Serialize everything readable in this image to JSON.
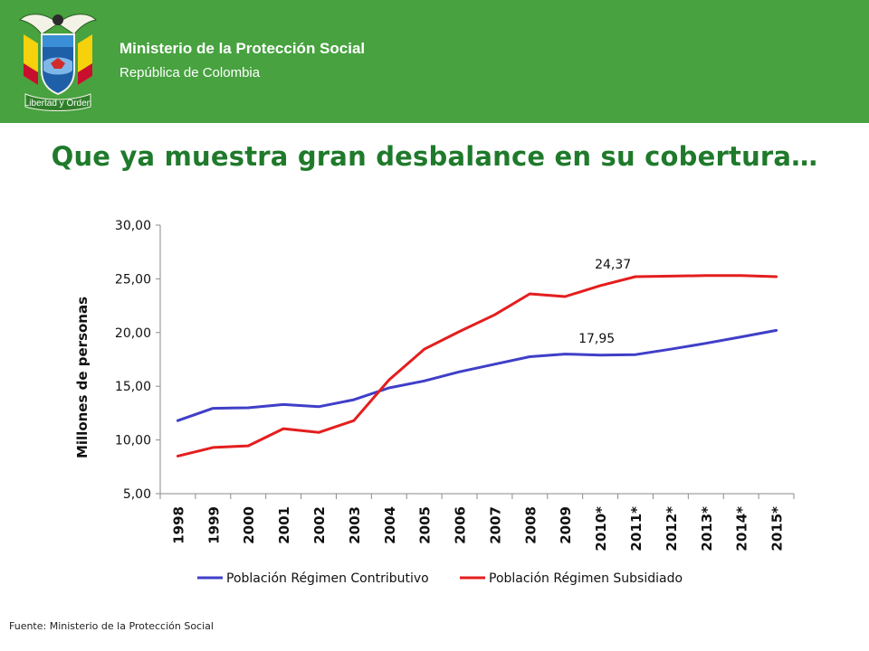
{
  "header": {
    "ministry": "Ministerio de la Protección Social",
    "republic": "República de Colombia",
    "seal_text": "Libertad y Orden",
    "bg_color": "#47a23f"
  },
  "slide_title": "Que ya muestra gran desbalance en su cobertura…",
  "chart_data": {
    "type": "line",
    "ylabel": "Millones de personas",
    "ylim": [
      5,
      30
    ],
    "y_ticks": [
      "5,00",
      "10,00",
      "15,00",
      "20,00",
      "25,00",
      "30,00"
    ],
    "categories": [
      "1998",
      "1999",
      "2000",
      "2001",
      "2002",
      "2003",
      "2004",
      "2005",
      "2006",
      "2007",
      "2008",
      "2009",
      "2010*",
      "2011*",
      "2012*",
      "2013*",
      "2014*",
      "2015*"
    ],
    "series": [
      {
        "name": "Población Régimen Contributivo",
        "color": "#3f3fc8",
        "values": [
          11.8,
          12.95,
          13.0,
          13.3,
          13.1,
          13.75,
          14.85,
          15.5,
          16.35,
          17.05,
          17.75,
          18.0,
          17.9,
          17.95,
          18.45,
          19.0,
          19.6,
          20.2
        ]
      },
      {
        "name": "Población Régimen Subsidiado",
        "color": "#e41e1e",
        "values": [
          8.5,
          9.3,
          9.45,
          11.05,
          10.7,
          11.8,
          15.6,
          18.45,
          20.1,
          21.65,
          23.6,
          23.35,
          24.37,
          25.2,
          25.25,
          25.3,
          25.3,
          25.2
        ]
      }
    ],
    "annotations": [
      "24,37",
      "17,95"
    ],
    "legend_position": "bottom",
    "grid": false
  },
  "footer": {
    "source": "Fuente: Ministerio de la Protección Social"
  }
}
